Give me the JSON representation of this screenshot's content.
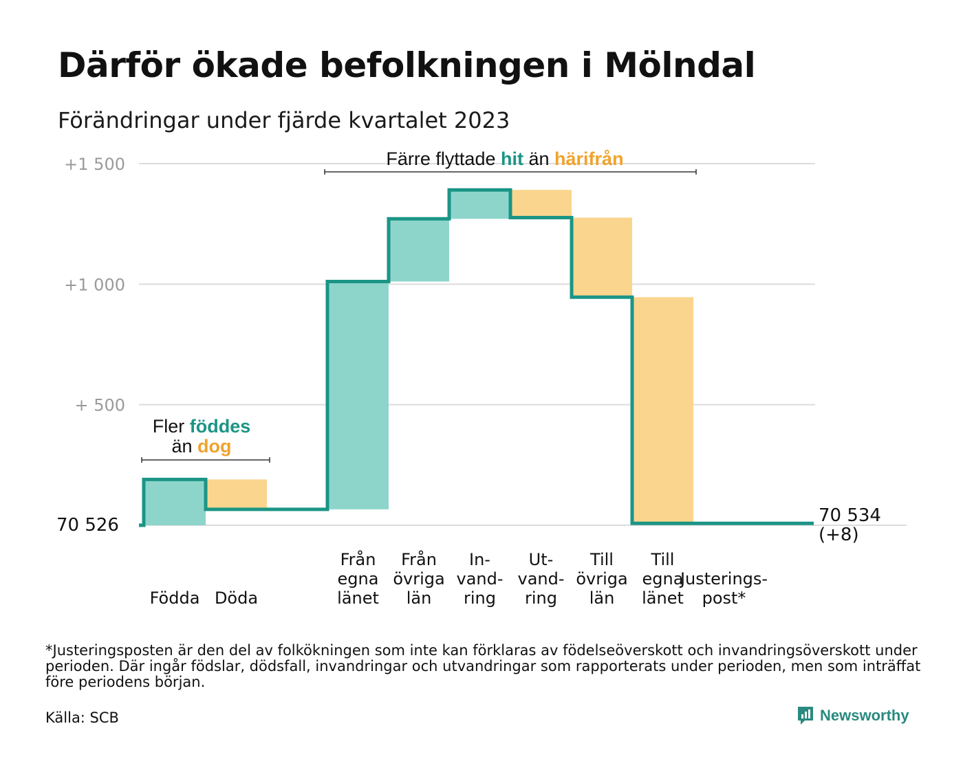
{
  "title": "Därför ökade befolkningen i Mölndal",
  "subtitle": "Förändringar under fjärde kvartalet 2023",
  "footnote": "*Justeringsposten är den del av folkökningen som inte kan förklaras av födelseöverskott och invandringsöverskott under perioden. Där ingår födslar, dödsfall, invandringar och utvandringar som rapporterats under perioden, men som inträffat före periodens början.",
  "source": "Källa: SCB",
  "brand": {
    "name": "Newsworthy",
    "icon": "newsworthy-logo-icon"
  },
  "colors": {
    "increase": "#8dd5cb",
    "decrease": "#fad58d",
    "line": "#1b9585",
    "hit": "#1b9585",
    "from": "#f0a32c",
    "grid": "#dcdcdc",
    "tick": "#9a9a9a"
  },
  "chart_data": {
    "type": "waterfall",
    "baseline": 70526,
    "baseline_label": "70  526",
    "end_label": [
      "70 534",
      "(+8)"
    ],
    "ylim": [
      0,
      1500
    ],
    "yticks": [
      {
        "value": 500,
        "label": "+  500"
      },
      {
        "value": 1000,
        "label": "+1  000"
      },
      {
        "value": 1500,
        "label": "+1  500"
      }
    ],
    "grid": true,
    "steps": [
      {
        "key": "fodda",
        "label": [
          "Födda"
        ],
        "change": 190,
        "direction": "increase"
      },
      {
        "key": "doda",
        "label": [
          "Döda"
        ],
        "change": -124,
        "direction": "decrease"
      },
      {
        "key": "gap",
        "label": [],
        "change": 0,
        "direction": "none"
      },
      {
        "key": "fran-egna-lanet",
        "label": [
          "Från",
          "egna",
          "länet"
        ],
        "change": 945,
        "direction": "increase"
      },
      {
        "key": "fran-ovriga-lan",
        "label": [
          "Från",
          "övriga",
          "län"
        ],
        "change": 260,
        "direction": "increase"
      },
      {
        "key": "invandring",
        "label": [
          "In-",
          "vand-",
          "ring"
        ],
        "change": 120,
        "direction": "increase"
      },
      {
        "key": "utvandring",
        "label": [
          "Ut-",
          "vand-",
          "ring"
        ],
        "change": -115,
        "direction": "decrease"
      },
      {
        "key": "till-ovriga-lan",
        "label": [
          "Till",
          "övriga",
          "län"
        ],
        "change": -330,
        "direction": "decrease"
      },
      {
        "key": "till-egna-lanet",
        "label": [
          "Till",
          "egna",
          "länet"
        ],
        "change": -938,
        "direction": "decrease"
      },
      {
        "key": "justeringspost",
        "label": [
          "Justerings-",
          "post*"
        ],
        "change": 0,
        "direction": "none"
      }
    ],
    "annotations": [
      {
        "key": "births",
        "lines": [
          [
            {
              "text": "Fler "
            },
            {
              "text": "föddes",
              "color": "hit"
            }
          ],
          [
            {
              "text": "än "
            },
            {
              "text": "dog",
              "color": "from"
            }
          ]
        ]
      },
      {
        "key": "migration",
        "lines": [
          [
            {
              "text": "Färre flyttade "
            },
            {
              "text": "hit",
              "color": "hit"
            },
            {
              "text": " än "
            },
            {
              "text": "härifrån",
              "color": "from"
            }
          ]
        ]
      }
    ]
  }
}
